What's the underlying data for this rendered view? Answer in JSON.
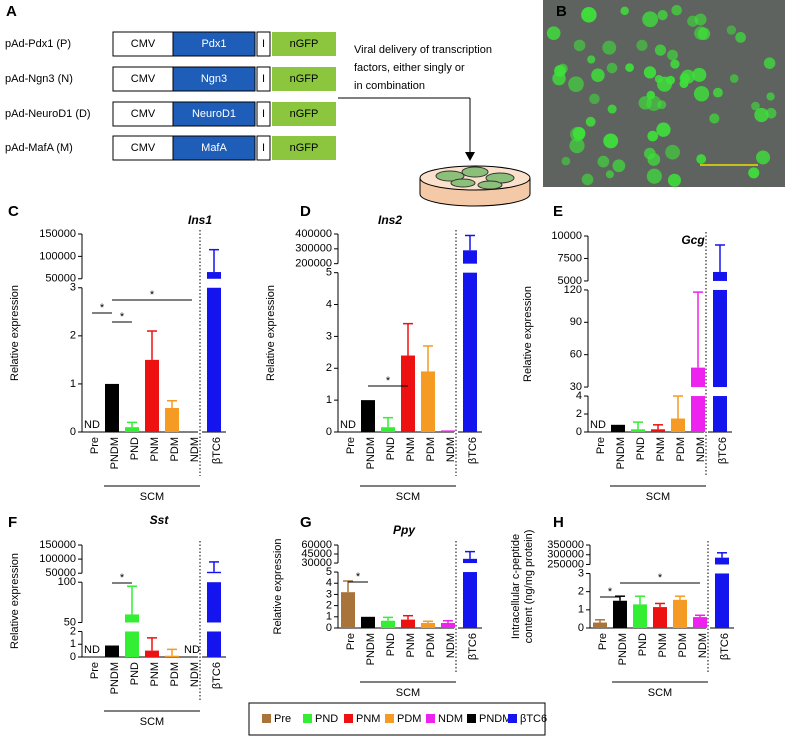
{
  "panel_a": {
    "letter": "A",
    "constructs": [
      {
        "name": "pAd-Pdx1 (P)",
        "promoter": "CMV",
        "gene": "Pdx1",
        "ires": "I",
        "reporter": "nGFP"
      },
      {
        "name": "pAd-Ngn3 (N)",
        "promoter": "CMV",
        "gene": "Ngn3",
        "ires": "I",
        "reporter": "nGFP"
      },
      {
        "name": "pAd-NeuroD1 (D)",
        "promoter": "CMV",
        "gene": "NeuroD1",
        "ires": "I",
        "reporter": "nGFP"
      },
      {
        "name": "pAd-MafA (M)",
        "promoter": "CMV",
        "gene": "MafA",
        "ires": "I",
        "reporter": "nGFP"
      }
    ],
    "note_lines": [
      "Viral delivery of transcription",
      "factors, either singly or",
      "in combination"
    ]
  },
  "panel_b": {
    "letter": "B"
  },
  "legend": [
    {
      "name": "Pre",
      "color": "#a8743a"
    },
    {
      "name": "PND",
      "color": "#33ee33"
    },
    {
      "name": "PNM",
      "color": "#ee1111"
    },
    {
      "name": "PDM",
      "color": "#f59a23"
    },
    {
      "name": "NDM",
      "color": "#ee22ee"
    },
    {
      "name": "PNDM",
      "color": "#000000"
    },
    {
      "name": "βTC6",
      "color": "#1414ee"
    }
  ],
  "chart_data": [
    {
      "letter": "C",
      "type": "bar",
      "title": "Ins1",
      "ylabel": "Relative expression",
      "categories": [
        "Pre",
        "PNDM",
        "PND",
        "PNM",
        "PDM",
        "NDM",
        "βTC6"
      ],
      "values": [
        null,
        1.0,
        0.1,
        1.5,
        0.5,
        0,
        65000
      ],
      "errors": [
        null,
        null,
        0.1,
        0.6,
        0.15,
        null,
        50000
      ],
      "segments": [
        {
          "ylim": [
            0,
            3
          ],
          "yticks": [
            0,
            1,
            2,
            3
          ]
        },
        {
          "ylim": [
            50000,
            150000
          ],
          "yticks": [
            50000,
            100000,
            150000
          ]
        }
      ],
      "group": {
        "label": "SCM",
        "from": "PNDM",
        "to": "NDM"
      },
      "significance": [
        {
          "from": "Pre",
          "to": "PNDM",
          "label": "*"
        },
        {
          "from": "PNDM",
          "to": "PND",
          "label": "*"
        },
        {
          "from": "PNDM",
          "to": "NDM",
          "label": "*"
        }
      ],
      "annotations": [
        {
          "text": "ND",
          "at": "Pre"
        }
      ]
    },
    {
      "letter": "D",
      "type": "bar",
      "title": "Ins2",
      "ylabel": "Relative expression",
      "categories": [
        "Pre",
        "PNDM",
        "PND",
        "PNM",
        "PDM",
        "NDM",
        "βTC6"
      ],
      "values": [
        null,
        1.0,
        0.15,
        2.4,
        1.9,
        0.05,
        290000
      ],
      "errors": [
        null,
        null,
        0.3,
        1.0,
        0.8,
        null,
        100000
      ],
      "segments": [
        {
          "ylim": [
            0,
            5
          ],
          "yticks": [
            0,
            1,
            2,
            3,
            4,
            5
          ]
        },
        {
          "ylim": [
            200000,
            400000
          ],
          "yticks": [
            200000,
            300000,
            400000
          ]
        }
      ],
      "group": {
        "label": "SCM",
        "from": "PNDM",
        "to": "NDM"
      },
      "significance": [
        {
          "from": "PNDM",
          "to": "PNM",
          "label": "*"
        }
      ],
      "annotations": [
        {
          "text": "ND",
          "at": "Pre"
        }
      ]
    },
    {
      "letter": "E",
      "type": "bar",
      "title": "Gcg",
      "ylabel": "Relative expression",
      "categories": [
        "Pre",
        "PNDM",
        "PND",
        "PNM",
        "PDM",
        "NDM",
        "βTC6"
      ],
      "values": [
        null,
        0.8,
        0.3,
        0.3,
        1.5,
        48,
        6000
      ],
      "errors": [
        null,
        null,
        0.8,
        0.5,
        2.5,
        70,
        3000
      ],
      "segments": [
        {
          "ylim": [
            0,
            4
          ],
          "yticks": [
            0,
            2,
            4
          ]
        },
        {
          "ylim": [
            30,
            120
          ],
          "yticks": [
            30,
            60,
            90,
            120
          ]
        },
        {
          "ylim": [
            5000,
            10000
          ],
          "yticks": [
            5000,
            7500,
            10000
          ]
        }
      ],
      "group": {
        "label": "SCM",
        "from": "PNDM",
        "to": "NDM"
      },
      "significance": [],
      "annotations": [
        {
          "text": "ND",
          "at": "Pre"
        }
      ]
    },
    {
      "letter": "F",
      "type": "bar",
      "title": "Sst",
      "ylabel": "Relative expression",
      "categories": [
        "Pre",
        "PNDM",
        "PND",
        "PNM",
        "PDM",
        "NDM",
        "βTC6"
      ],
      "values": [
        null,
        0.9,
        60,
        0.5,
        0.1,
        null,
        55000
      ],
      "errors": [
        null,
        null,
        35,
        1.0,
        0.5,
        null,
        35000
      ],
      "segments": [
        {
          "ylim": [
            0,
            2
          ],
          "yticks": [
            0,
            1,
            2
          ]
        },
        {
          "ylim": [
            50,
            100
          ],
          "yticks": [
            50,
            100
          ]
        },
        {
          "ylim": [
            50000,
            150000
          ],
          "yticks": [
            50000,
            100000,
            150000
          ]
        }
      ],
      "group": {
        "label": "SCM",
        "from": "PNDM",
        "to": "NDM"
      },
      "significance": [
        {
          "from": "PNDM",
          "to": "PND",
          "label": "*"
        }
      ],
      "annotations": [
        {
          "text": "ND",
          "at": "Pre"
        },
        {
          "text": "ND",
          "at": "NDM"
        }
      ]
    },
    {
      "letter": "G",
      "type": "bar",
      "title": "Ppy",
      "ylabel": "Relative expression",
      "categories": [
        "Pre",
        "PNDM",
        "PND",
        "PNM",
        "PDM",
        "NDM",
        "βTC6"
      ],
      "values": [
        3.2,
        1.0,
        0.65,
        0.75,
        0.45,
        0.45,
        37000
      ],
      "errors": [
        1.0,
        null,
        0.3,
        0.35,
        0.15,
        0.2,
        12000
      ],
      "segments": [
        {
          "ylim": [
            0,
            5
          ],
          "yticks": [
            0,
            1,
            2,
            3,
            4,
            5
          ]
        },
        {
          "ylim": [
            30000,
            60000
          ],
          "yticks": [
            30000,
            45000,
            60000
          ]
        }
      ],
      "group": {
        "label": "SCM",
        "from": "PNDM",
        "to": "NDM"
      },
      "significance": [
        {
          "from": "Pre",
          "to": "PNDM",
          "label": "*"
        }
      ],
      "annotations": []
    },
    {
      "letter": "H",
      "type": "bar",
      "ylabel": [
        "Intracellular c-peptide",
        "content (ng/mg protein)"
      ],
      "categories": [
        "Pre",
        "PNDM",
        "PND",
        "PNM",
        "PDM",
        "NDM",
        "βTC6"
      ],
      "values": [
        0.3,
        1.5,
        1.3,
        1.15,
        1.55,
        0.6,
        285000
      ],
      "errors": [
        0.15,
        0.25,
        0.45,
        0.2,
        0.2,
        0.1,
        25000
      ],
      "segments": [
        {
          "ylim": [
            0,
            3
          ],
          "yticks": [
            0,
            1,
            2,
            3
          ]
        },
        {
          "ylim": [
            250000,
            350000
          ],
          "yticks": [
            250000,
            300000,
            350000
          ]
        }
      ],
      "group": {
        "label": "SCM",
        "from": "PNDM",
        "to": "NDM"
      },
      "significance": [
        {
          "from": "Pre",
          "to": "PNDM",
          "label": "*"
        },
        {
          "from": "PNDM",
          "to": "NDM",
          "label": "*"
        }
      ],
      "annotations": []
    }
  ]
}
